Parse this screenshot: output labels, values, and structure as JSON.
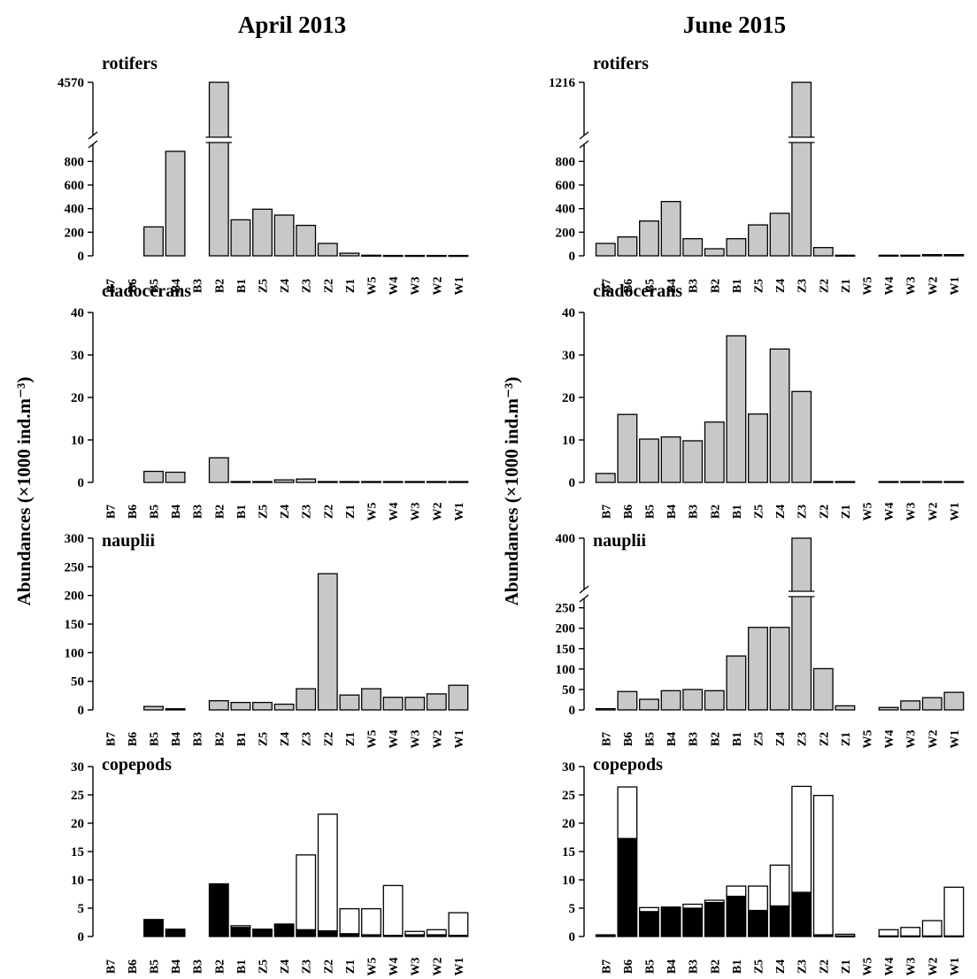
{
  "columns": [
    {
      "title": "April 2013"
    },
    {
      "title": "June 2015"
    }
  ],
  "ylabel": "Abundances (×1000 ind.m⁻³)",
  "colors": {
    "bar_fill": "#c8c8c8",
    "bar_stroke": "#000000",
    "cyclopoid": "#000000",
    "calanoid": "#ffffff"
  },
  "categories": [
    "B7",
    "B6",
    "B5",
    "B4",
    "B3",
    "B2",
    "B1",
    "Z5",
    "Z4",
    "Z3",
    "Z2",
    "Z1",
    "W5",
    "W4",
    "W3",
    "W2",
    "W1"
  ],
  "chart_data": [
    {
      "type": "bar",
      "title": "rotifers",
      "column": "April 2013",
      "categories": [
        "B7",
        "B6",
        "B5",
        "B4",
        "B3",
        "B2",
        "B1",
        "Z5",
        "Z4",
        "Z3",
        "Z2",
        "Z1",
        "W5",
        "W4",
        "W3",
        "W2",
        "W1"
      ],
      "values": [
        null,
        null,
        245,
        885,
        null,
        4570,
        305,
        395,
        345,
        258,
        105,
        22,
        5,
        3,
        3,
        3,
        3
      ],
      "yticks": [
        0,
        200,
        400,
        600,
        800
      ],
      "ylim": [
        0,
        900
      ],
      "axis_break": true,
      "break_top_label": 4570
    },
    {
      "type": "bar",
      "title": "rotifers",
      "column": "June 2015",
      "categories": [
        "B7",
        "B6",
        "B5",
        "B4",
        "B3",
        "B2",
        "B1",
        "Z5",
        "Z4",
        "Z3",
        "Z2",
        "Z1",
        "W5",
        "W4",
        "W3",
        "W2",
        "W1"
      ],
      "values": [
        105,
        160,
        295,
        460,
        145,
        60,
        145,
        262,
        360,
        1216,
        70,
        5,
        null,
        5,
        5,
        10,
        10
      ],
      "yticks": [
        0,
        200,
        400,
        600,
        800
      ],
      "ylim": [
        0,
        900
      ],
      "axis_break": true,
      "break_top_label": 1216
    },
    {
      "type": "bar",
      "title": "cladocerans",
      "column": "April 2013",
      "categories": [
        "B7",
        "B6",
        "B5",
        "B4",
        "B3",
        "B2",
        "B1",
        "Z5",
        "Z4",
        "Z3",
        "Z2",
        "Z1",
        "W5",
        "W4",
        "W3",
        "W2",
        "W1"
      ],
      "values": [
        null,
        null,
        2.6,
        2.4,
        null,
        5.8,
        0.2,
        0.2,
        0.6,
        0.8,
        0.2,
        0.2,
        0.2,
        0.2,
        0.2,
        0.2,
        0.2
      ],
      "yticks": [
        0,
        10,
        20,
        30,
        40
      ],
      "ylim": [
        0,
        40
      ]
    },
    {
      "type": "bar",
      "title": "cladocerans",
      "column": "June 2015",
      "categories": [
        "B7",
        "B6",
        "B5",
        "B4",
        "B3",
        "B2",
        "B1",
        "Z5",
        "Z4",
        "Z3",
        "Z2",
        "Z1",
        "W5",
        "W4",
        "W3",
        "W2",
        "W1"
      ],
      "values": [
        2.1,
        16,
        10.2,
        10.7,
        9.8,
        14.2,
        34.5,
        16.1,
        31.4,
        21.4,
        0.2,
        0.2,
        null,
        0.2,
        0.2,
        0.2,
        0.2
      ],
      "yticks": [
        0,
        10,
        20,
        30,
        40
      ],
      "ylim": [
        0,
        40
      ]
    },
    {
      "type": "bar",
      "title": "nauplii",
      "column": "April 2013",
      "categories": [
        "B7",
        "B6",
        "B5",
        "B4",
        "B3",
        "B2",
        "B1",
        "Z5",
        "Z4",
        "Z3",
        "Z2",
        "Z1",
        "W5",
        "W4",
        "W3",
        "W2",
        "W1"
      ],
      "values": [
        null,
        null,
        6,
        2,
        null,
        16,
        13,
        13,
        10,
        37,
        238,
        26,
        37,
        22,
        22,
        28,
        43
      ],
      "yticks": [
        0,
        50,
        100,
        150,
        200,
        250,
        300
      ],
      "ylim": [
        0,
        300
      ]
    },
    {
      "type": "bar",
      "title": "nauplii",
      "column": "June 2015",
      "categories": [
        "B7",
        "B6",
        "B5",
        "B4",
        "B3",
        "B2",
        "B1",
        "Z5",
        "Z4",
        "Z3",
        "Z2",
        "Z1",
        "W5",
        "W4",
        "W3",
        "W2",
        "W1"
      ],
      "values": [
        3,
        45,
        26,
        47,
        50,
        47,
        132,
        202,
        202,
        400,
        101,
        10,
        null,
        6,
        22,
        30,
        43
      ],
      "yticks": [
        0,
        50,
        100,
        150,
        200,
        250
      ],
      "ylim": [
        0,
        260
      ],
      "axis_break": true,
      "break_top_label": 400
    },
    {
      "type": "stacked_bar",
      "title": "copepods",
      "column": "April 2013",
      "categories": [
        "B7",
        "B6",
        "B5",
        "B4",
        "B3",
        "B2",
        "B1",
        "Z5",
        "Z4",
        "Z3",
        "Z2",
        "Z1",
        "W5",
        "W4",
        "W3",
        "W2",
        "W1"
      ],
      "series": [
        {
          "color": "#000000",
          "values": [
            null,
            null,
            3.0,
            1.3,
            null,
            9.3,
            1.6,
            1.3,
            2.0,
            1.2,
            1.0,
            0.5,
            0.3,
            0.2,
            0.3,
            0.3,
            0.2
          ]
        },
        {
          "color": "#ffffff",
          "values": [
            null,
            null,
            0,
            0,
            null,
            0,
            0.3,
            0,
            0.2,
            13.2,
            20.6,
            4.4,
            4.6,
            8.8,
            0.6,
            0.9,
            4.0
          ]
        }
      ],
      "yticks": [
        0,
        5,
        10,
        15,
        20,
        25,
        30
      ],
      "ylim": [
        0,
        30
      ]
    },
    {
      "type": "stacked_bar",
      "title": "copepods",
      "column": "June 2015",
      "categories": [
        "B7",
        "B6",
        "B5",
        "B4",
        "B3",
        "B2",
        "B1",
        "Z5",
        "Z4",
        "Z3",
        "Z2",
        "Z1",
        "W5",
        "W4",
        "W3",
        "W2",
        "W1"
      ],
      "series": [
        {
          "color": "#000000",
          "values": [
            0.3,
            17.3,
            4.4,
            5.2,
            5.0,
            6.0,
            7.1,
            4.6,
            5.4,
            7.8,
            0.3,
            0.1,
            null,
            0.1,
            0.1,
            0.1,
            0.1
          ]
        },
        {
          "color": "#ffffff",
          "values": [
            0,
            9.1,
            0.7,
            0,
            0.7,
            0.4,
            1.8,
            4.3,
            7.2,
            18.7,
            24.6,
            0.3,
            null,
            1.1,
            1.5,
            2.7,
            8.6
          ]
        }
      ],
      "yticks": [
        0,
        5,
        10,
        15,
        20,
        25,
        30
      ],
      "ylim": [
        0,
        30
      ]
    }
  ]
}
